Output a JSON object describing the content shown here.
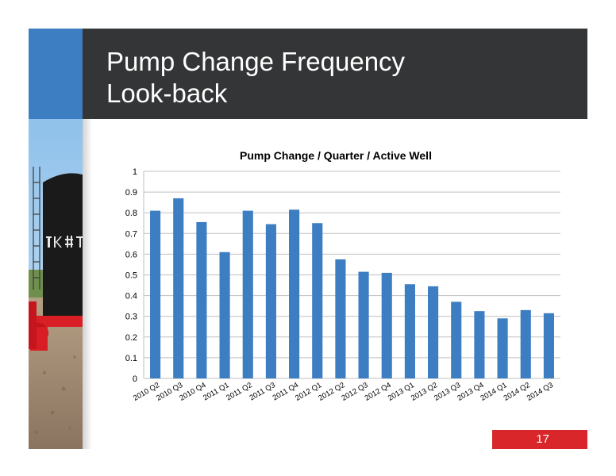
{
  "slide": {
    "title_line1": "Pump Change Frequency",
    "title_line2": "Look-back",
    "page_number": "17",
    "colors": {
      "title_bar": "#333536",
      "accent_blue": "#3d7dc2",
      "page_badge": "#d9262a",
      "bar": "#3d7dc2"
    }
  },
  "chart_data": {
    "type": "bar",
    "title": "Pump Change / Quarter / Active Well",
    "xlabel": "",
    "ylabel": "",
    "ylim": [
      0,
      1
    ],
    "yticks": [
      0,
      0.1,
      0.2,
      0.3,
      0.4,
      0.5,
      0.6,
      0.7,
      0.8,
      0.9,
      1
    ],
    "ytick_labels": [
      "0",
      "0.1",
      "0.2",
      "0.3",
      "0.4",
      "0.5",
      "0.6",
      "0.7",
      "0.8",
      "0.9",
      "1"
    ],
    "grid": true,
    "legend": "none",
    "categories": [
      "2010 Q2",
      "2010 Q3",
      "2010 Q4",
      "2011 Q1",
      "2011 Q2",
      "2011 Q3",
      "2011 Q4",
      "2012 Q1",
      "2012 Q2",
      "2012 Q3",
      "2012 Q4",
      "2013 Q1",
      "2013 Q2",
      "2013 Q3",
      "2013 Q4",
      "2014 Q1",
      "2014 Q2",
      "2014 Q3"
    ],
    "values": [
      0.81,
      0.87,
      0.755,
      0.61,
      0.81,
      0.745,
      0.815,
      0.75,
      0.575,
      0.515,
      0.51,
      0.455,
      0.445,
      0.37,
      0.325,
      0.29,
      0.33,
      0.315
    ]
  }
}
